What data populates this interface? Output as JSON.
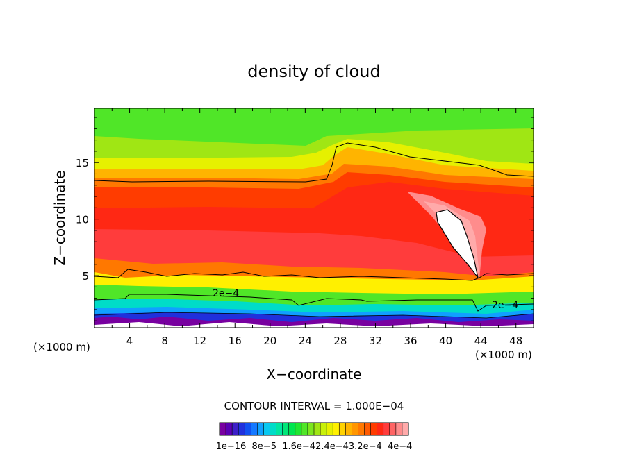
{
  "chart_data": {
    "type": "heatmap",
    "title": "density of cloud",
    "xlabel": "X−coordinate",
    "ylabel": "Z−coordinate",
    "x_unit_left": "(×1000 m)",
    "x_unit_right": "(×1000 m)",
    "xlim": [
      0,
      50
    ],
    "ylim": [
      0.4,
      19.8
    ],
    "x_ticks": [
      4,
      8,
      12,
      16,
      20,
      24,
      28,
      32,
      36,
      40,
      44,
      48
    ],
    "y_ticks": [
      5,
      10,
      15
    ],
    "contour_interval_label": "CONTOUR INTERVAL = 1.000E−04",
    "contour_labels": [
      "2e−4",
      "2e−4"
    ],
    "colorbar": {
      "tick_text": "1e−16  8e−5  1.6e−42.4e−43.2e−4  4e−4",
      "colors": [
        "#7800a0",
        "#5a00b4",
        "#3c1ec8",
        "#2030dc",
        "#1050f0",
        "#1478ff",
        "#10a0ff",
        "#08c8f0",
        "#00dcc8",
        "#00e6a0",
        "#00e678",
        "#00e650",
        "#20e632",
        "#50e628",
        "#7ce61e",
        "#a0e614",
        "#c8f00a",
        "#e6f000",
        "#fff000",
        "#ffd200",
        "#ffb400",
        "#ff9600",
        "#ff7800",
        "#ff5a00",
        "#ff3c00",
        "#ff2814",
        "#ff3c3c",
        "#ff6464",
        "#ff8c8c",
        "#ffaaaa"
      ]
    }
  }
}
